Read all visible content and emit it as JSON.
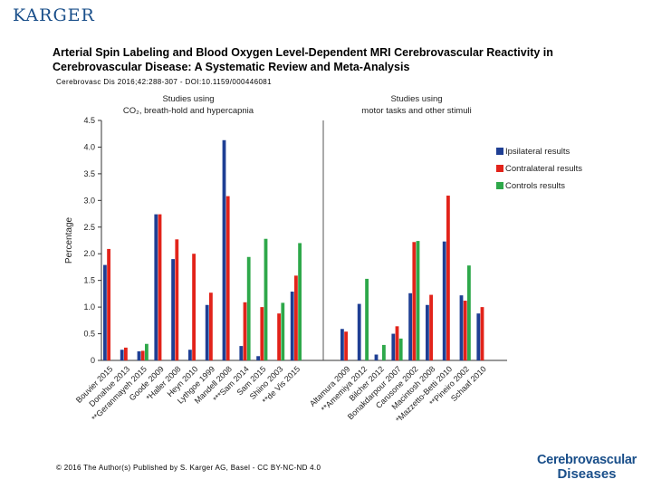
{
  "header": {
    "publisher_logo": "KARGER",
    "title": "Arterial Spin Labeling and Blood Oxygen Level-Dependent MRI Cerebrovascular Reactivity in Cerebrovascular Disease: A Systematic Review and Meta-Analysis",
    "citation": "Cerebrovasc Dis 2016;42:288-307 - DOI:10.1159/000446081"
  },
  "footer": {
    "copyright": "© 2016 The Author(s) Published by S. Karger AG, Basel - CC BY-NC-ND 4.0",
    "journal_line1": "Cerebrovascular",
    "journal_line2": "Diseases"
  },
  "colors": {
    "ipsilateral": "#1f3f94",
    "contralateral": "#e2231a",
    "controls": "#2ea84a",
    "brand": "#1a4f8a"
  },
  "chart_data": {
    "type": "bar",
    "ylabel": "Percentage",
    "xlabel": "",
    "ylim": [
      0,
      4.5
    ],
    "yticks": [
      "0",
      "0.5",
      "1.0",
      "1.5",
      "2.0",
      "2.5",
      "3.0",
      "3.5",
      "4.0",
      "4.5"
    ],
    "legend_position": "right",
    "group_titles": [
      [
        "Studies using",
        "CO₂, breath-hold and hypercapnia"
      ],
      [
        "Studies using",
        "motor tasks and other stimuli"
      ]
    ],
    "series": [
      {
        "name": "Ipsilateral results",
        "color": "#1f3f94"
      },
      {
        "name": "Contralateral results",
        "color": "#e2231a"
      },
      {
        "name": "Controls results",
        "color": "#2ea84a"
      }
    ],
    "groups": [
      {
        "categories": [
          {
            "label": "Bouvier 2015",
            "values": [
              1.79,
              2.09,
              null
            ]
          },
          {
            "label": "Donahue 2013",
            "values": [
              0.2,
              0.24,
              null
            ]
          },
          {
            "label": "**Geranmayeh 2015",
            "values": [
              0.17,
              0.18,
              0.31
            ]
          },
          {
            "label": "Goode 2009",
            "values": [
              2.74,
              2.74,
              null
            ]
          },
          {
            "label": "*Haller 2008",
            "values": [
              1.9,
              2.27,
              null
            ]
          },
          {
            "label": "Heyn 2010",
            "values": [
              0.2,
              2.0,
              null
            ]
          },
          {
            "label": "Lythgoe 1999",
            "values": [
              1.04,
              1.27,
              null
            ]
          },
          {
            "label": "Mandell 2008",
            "values": [
              4.13,
              3.08,
              null
            ]
          },
          {
            "label": "***Sam 2014",
            "values": [
              0.27,
              1.09,
              1.94
            ]
          },
          {
            "label": "Sam 2015",
            "values": [
              0.08,
              1.0,
              2.28
            ]
          },
          {
            "label": "Shiino 2003",
            "values": [
              null,
              0.88,
              1.08
            ]
          },
          {
            "label": "**de Vis 2015",
            "values": [
              1.29,
              1.59,
              2.2
            ]
          }
        ]
      },
      {
        "categories": [
          {
            "label": "Altamura 2009",
            "values": [
              0.59,
              0.54,
              null
            ]
          },
          {
            "label": "**Amemiya 2012",
            "values": [
              1.06,
              null,
              1.53
            ]
          },
          {
            "label": "Bilcher 2012",
            "values": [
              0.11,
              null,
              0.29
            ]
          },
          {
            "label": "Bonakdarpour 2007",
            "values": [
              0.5,
              0.64,
              0.41
            ]
          },
          {
            "label": "Carusone 2002",
            "values": [
              1.26,
              2.22,
              2.24
            ]
          },
          {
            "label": "Macintosh 2008",
            "values": [
              1.04,
              1.23,
              null
            ]
          },
          {
            "label": "*Mazzetto-Betti 2010",
            "values": [
              2.23,
              3.09,
              null
            ]
          },
          {
            "label": "**Pineiro 2002",
            "values": [
              1.22,
              1.12,
              1.78
            ]
          },
          {
            "label": "Schaaf 2010",
            "values": [
              0.88,
              1.0,
              null
            ]
          }
        ]
      }
    ]
  }
}
